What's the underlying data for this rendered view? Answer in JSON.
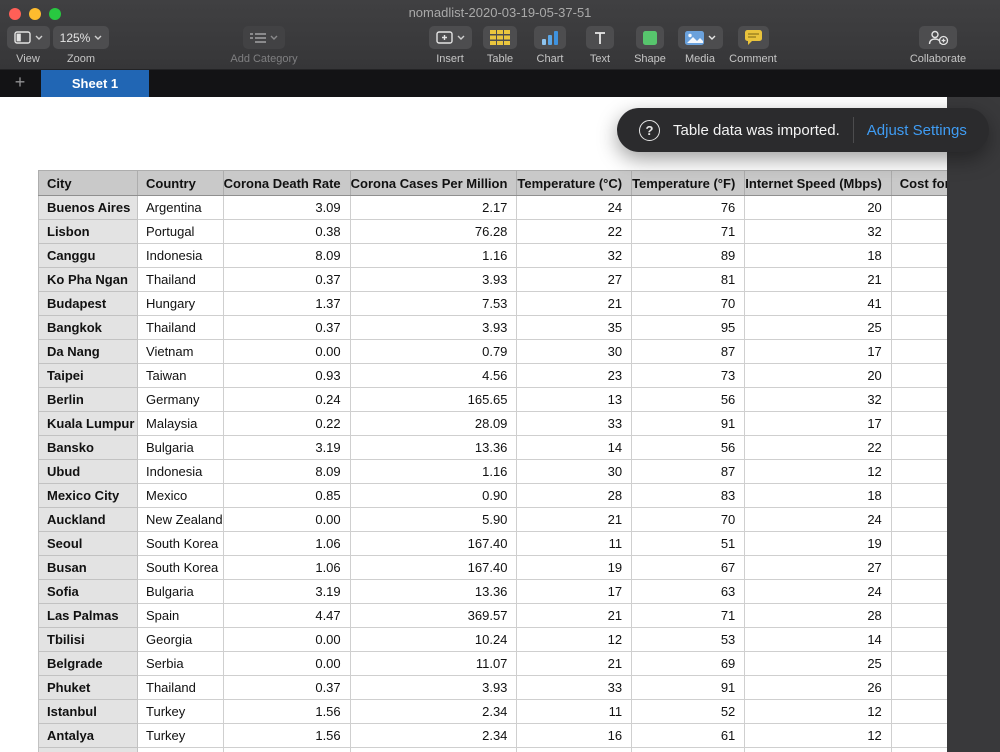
{
  "window": {
    "title": "nomadlist-2020-03-19-05-37-51"
  },
  "toolbar": {
    "view": {
      "label": "View",
      "icon": "view-panels-icon"
    },
    "zoom": {
      "label": "Zoom",
      "value": "125%"
    },
    "add_category": {
      "label": "Add Category",
      "icon": "category-list-icon",
      "enabled": false
    },
    "insert": {
      "label": "Insert",
      "icon": "insert-box-plus-icon"
    },
    "table_btn": {
      "label": "Table",
      "icon": "table-grid-icon"
    },
    "chart": {
      "label": "Chart",
      "icon": "bar-chart-icon"
    },
    "text": {
      "label": "Text",
      "icon": "text-t-icon"
    },
    "shape": {
      "label": "Shape",
      "icon": "green-square-icon"
    },
    "media": {
      "label": "Media",
      "icon": "photo-icon"
    },
    "comment": {
      "label": "Comment",
      "icon": "speech-bubble-icon"
    },
    "collaborate": {
      "label": "Collaborate",
      "icon": "person-plus-icon"
    }
  },
  "sheets": {
    "add_label": "+",
    "active_tab": "Sheet 1"
  },
  "notification": {
    "icon": "?",
    "message": "Table data was imported.",
    "action": "Adjust Settings"
  },
  "table": {
    "columns": [
      "City",
      "Country",
      "Corona Death Rate",
      "Corona Cases Per Million",
      "Temperature (°C)",
      "Temperature (°F)",
      "Internet Speed (Mbps)",
      "Cost for Expat"
    ],
    "rows": [
      [
        "Buenos Aires",
        "Argentina",
        "3.09",
        "2.17",
        "24",
        "76",
        "20",
        ""
      ],
      [
        "Lisbon",
        "Portugal",
        "0.38",
        "76.28",
        "22",
        "71",
        "32",
        ""
      ],
      [
        "Canggu",
        "Indonesia",
        "8.09",
        "1.16",
        "32",
        "89",
        "18",
        ""
      ],
      [
        "Ko Pha Ngan",
        "Thailand",
        "0.37",
        "3.93",
        "27",
        "81",
        "21",
        ""
      ],
      [
        "Budapest",
        "Hungary",
        "1.37",
        "7.53",
        "21",
        "70",
        "41",
        ""
      ],
      [
        "Bangkok",
        "Thailand",
        "0.37",
        "3.93",
        "35",
        "95",
        "25",
        ""
      ],
      [
        "Da Nang",
        "Vietnam",
        "0.00",
        "0.79",
        "30",
        "87",
        "17",
        ""
      ],
      [
        "Taipei",
        "Taiwan",
        "0.93",
        "4.56",
        "23",
        "73",
        "20",
        ""
      ],
      [
        "Berlin",
        "Germany",
        "0.24",
        "165.65",
        "13",
        "56",
        "32",
        ""
      ],
      [
        "Kuala Lumpur",
        "Malaysia",
        "0.22",
        "28.09",
        "33",
        "91",
        "17",
        ""
      ],
      [
        "Bansko",
        "Bulgaria",
        "3.19",
        "13.36",
        "14",
        "56",
        "22",
        ""
      ],
      [
        "Ubud",
        "Indonesia",
        "8.09",
        "1.16",
        "30",
        "87",
        "12",
        ""
      ],
      [
        "Mexico City",
        "Mexico",
        "0.85",
        "0.90",
        "28",
        "83",
        "18",
        ""
      ],
      [
        "Auckland",
        "New Zealand",
        "0.00",
        "5.90",
        "21",
        "70",
        "24",
        ""
      ],
      [
        "Seoul",
        "South Korea",
        "1.06",
        "167.40",
        "11",
        "51",
        "19",
        ""
      ],
      [
        "Busan",
        "South Korea",
        "1.06",
        "167.40",
        "19",
        "67",
        "27",
        ""
      ],
      [
        "Sofia",
        "Bulgaria",
        "3.19",
        "13.36",
        "17",
        "63",
        "24",
        ""
      ],
      [
        "Las Palmas",
        "Spain",
        "4.47",
        "369.57",
        "21",
        "71",
        "28",
        ""
      ],
      [
        "Tbilisi",
        "Georgia",
        "0.00",
        "10.24",
        "12",
        "53",
        "14",
        ""
      ],
      [
        "Belgrade",
        "Serbia",
        "0.00",
        "11.07",
        "21",
        "69",
        "25",
        ""
      ],
      [
        "Phuket",
        "Thailand",
        "0.37",
        "3.93",
        "33",
        "91",
        "26",
        ""
      ],
      [
        "Istanbul",
        "Turkey",
        "1.56",
        "2.34",
        "11",
        "52",
        "12",
        ""
      ],
      [
        "Antalya",
        "Turkey",
        "1.56",
        "2.34",
        "16",
        "61",
        "12",
        ""
      ]
    ]
  },
  "colors": {
    "sheet_tab_blue": "#2166b4",
    "action_link_blue": "#3f9cf3",
    "table_icon_yellow": "#eac63e",
    "chart_icon_blue": "#4aa0e4",
    "shape_icon_green": "#57c56d",
    "media_icon_blue": "#6aa1dc",
    "comment_icon_yellow": "#e9c33c",
    "traffic_red": "#ff5f57",
    "traffic_yellow": "#febc2e",
    "traffic_green": "#28c840",
    "header_row_gray": "#c9c9c9",
    "row_header_gray": "#e3e3e3"
  }
}
